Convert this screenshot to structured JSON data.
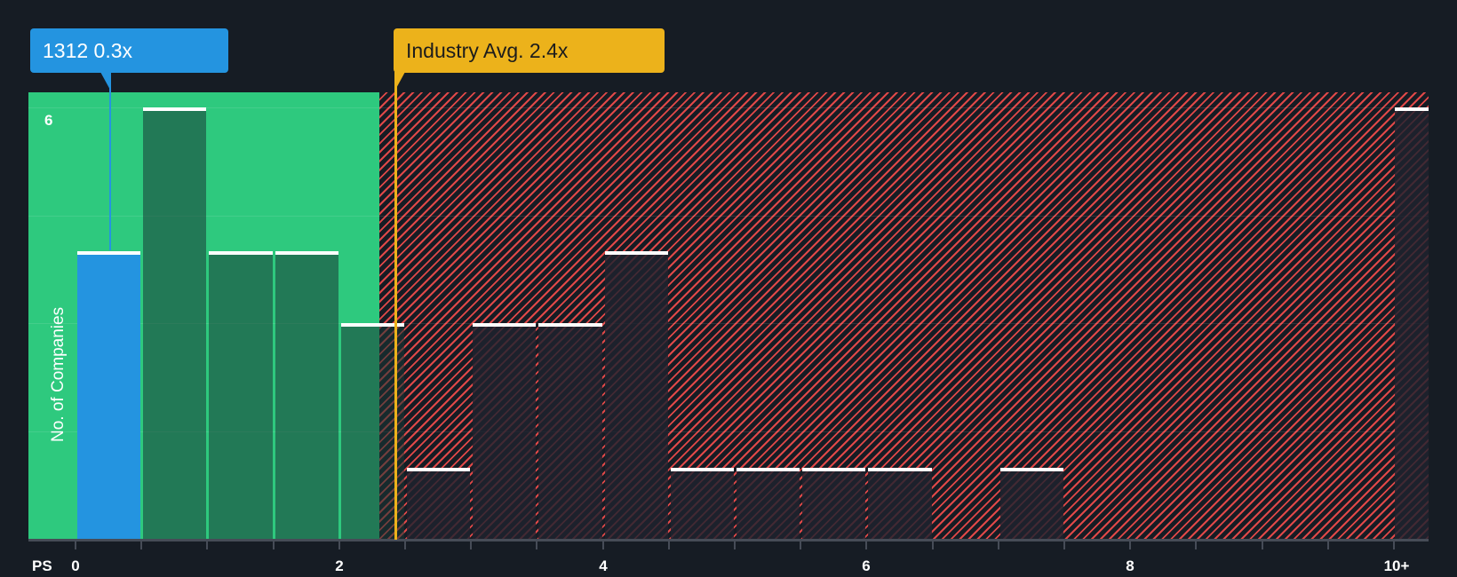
{
  "chart_data": {
    "type": "bar",
    "title": "",
    "xlabel": "PS",
    "ylabel": "No. of Companies",
    "bin_width": 0.5,
    "categories": [
      "0-0.5",
      "0.5-1",
      "1-1.5",
      "1.5-2",
      "2-2.5",
      "2.5-3",
      "3-3.5",
      "3.5-4",
      "4-4.5",
      "4.5-5",
      "5-5.5",
      "5.5-6",
      "6-6.5",
      "6.5-7",
      "7-7.5",
      "7.5-8",
      "8-8.5",
      "8.5-9",
      "9-9.5",
      "9.5-10",
      "10+"
    ],
    "values": [
      4,
      6,
      4,
      4,
      3,
      1,
      3,
      3,
      4,
      1,
      1,
      1,
      1,
      0,
      1,
      0,
      0,
      0,
      0,
      0,
      6
    ],
    "highlighted_bin": "0-0.5",
    "x_ticks": [
      "0",
      "2",
      "4",
      "6",
      "8",
      "10+"
    ],
    "y_ticks": [
      "6"
    ],
    "ylim": [
      0,
      6
    ],
    "grid": true,
    "annotations": [
      {
        "label": "1312 0.3x",
        "x": 0.3,
        "color": "#2494e0"
      },
      {
        "label": "Industry Avg. 2.4x",
        "x": 2.4,
        "color": "#ecb21b"
      }
    ],
    "regions": [
      {
        "name": "fair",
        "from": 0,
        "to": 2.3,
        "color": "#2ec97e"
      },
      {
        "name": "overvalued",
        "from": 2.3,
        "to": 10.5,
        "color": "#e04848",
        "pattern": "hatched"
      }
    ]
  },
  "labels": {
    "company": "1312 0.3x",
    "industry": "Industry Avg. 2.4x",
    "x_axis": "PS",
    "y_axis": "No. of Companies",
    "y_tick_top": "6",
    "x_ticks": [
      "0",
      "2",
      "4",
      "6",
      "8",
      "10+"
    ]
  }
}
